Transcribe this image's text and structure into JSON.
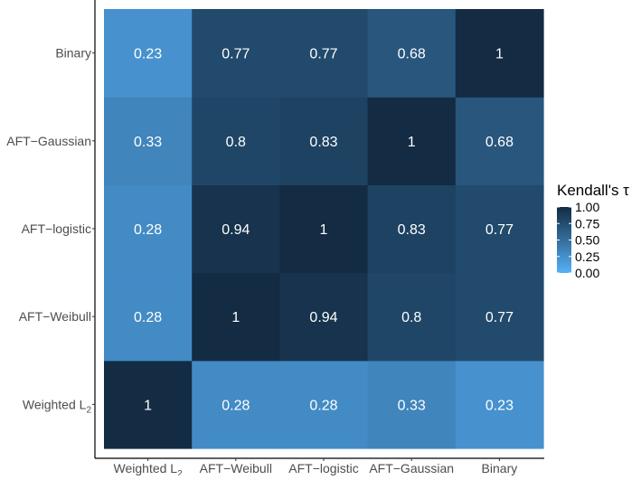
{
  "chart_data": {
    "type": "heatmap",
    "title": "",
    "xlabel": "",
    "ylabel": "",
    "x_categories": [
      "Weighted L2",
      "AFT−Weibull",
      "AFT−logistic",
      "AFT−Gaussian",
      "Binary"
    ],
    "y_categories": [
      "Weighted L2",
      "AFT−Weibull",
      "AFT−logistic",
      "AFT−Gaussian",
      "Binary"
    ],
    "values": [
      [
        1,
        0.28,
        0.28,
        0.33,
        0.23
      ],
      [
        0.28,
        1,
        0.94,
        0.8,
        0.77
      ],
      [
        0.28,
        0.94,
        1,
        0.83,
        0.77
      ],
      [
        0.33,
        0.8,
        0.83,
        1,
        0.68
      ],
      [
        0.23,
        0.77,
        0.77,
        0.68,
        1
      ]
    ],
    "cell_labels": [
      [
        "1",
        "0.28",
        "0.28",
        "0.33",
        "0.23"
      ],
      [
        "0.28",
        "1",
        "0.94",
        "0.8",
        "0.77"
      ],
      [
        "0.28",
        "0.94",
        "1",
        "0.83",
        "0.77"
      ],
      [
        "0.33",
        "0.8",
        "0.83",
        "1",
        "0.68"
      ],
      [
        "0.23",
        "0.77",
        "0.77",
        "0.68",
        "1"
      ]
    ],
    "color_scale": {
      "low_color": "#56B1F7",
      "high_color": "#132B43",
      "range": [
        0,
        1
      ]
    },
    "legend": {
      "title": "Kendall's τ",
      "ticks": [
        1,
        0.75,
        0.5,
        0.25,
        0
      ],
      "tick_labels": [
        "1.00",
        "0.75",
        "0.50",
        "0.25",
        "0.00"
      ],
      "position": "right"
    },
    "grid": false
  }
}
